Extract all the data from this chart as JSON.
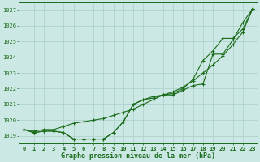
{
  "title": "Graphe pression niveau de la mer (hPa)",
  "xlabel_hours": [
    0,
    1,
    2,
    3,
    4,
    5,
    6,
    7,
    8,
    9,
    10,
    11,
    12,
    13,
    14,
    15,
    16,
    17,
    18,
    19,
    20,
    21,
    22,
    23
  ],
  "ylim": [
    1018.5,
    1027.5
  ],
  "yticks": [
    1019,
    1020,
    1021,
    1022,
    1023,
    1024,
    1025,
    1026,
    1027
  ],
  "bg_color": "#cce8e4",
  "line_color": "#1a6b1a",
  "grid_color": "#aacfc8",
  "series1": [
    1019.4,
    1019.2,
    1019.3,
    1019.3,
    1019.2,
    1018.8,
    1018.8,
    1018.8,
    1018.8,
    1019.2,
    1019.9,
    1021.0,
    1021.3,
    1021.4,
    1021.6,
    1021.6,
    1021.9,
    1022.2,
    1022.3,
    1024.2,
    1024.2,
    1025.1,
    1026.2,
    1027.1
  ],
  "series2": [
    1019.4,
    1019.2,
    1019.3,
    1019.3,
    1019.2,
    1018.8,
    1018.8,
    1018.8,
    1018.8,
    1019.2,
    1019.9,
    1021.0,
    1021.3,
    1021.5,
    1021.6,
    1021.7,
    1022.0,
    1022.6,
    1023.8,
    1024.4,
    1025.2,
    1025.2,
    1025.8,
    1027.1
  ],
  "series3": [
    1019.4,
    1019.3,
    1019.4,
    1019.4,
    1019.6,
    1019.8,
    1019.9,
    1020.0,
    1020.1,
    1020.3,
    1020.5,
    1020.7,
    1021.0,
    1021.3,
    1021.6,
    1021.8,
    1022.1,
    1022.5,
    1023.0,
    1023.5,
    1024.1,
    1024.8,
    1025.6,
    1027.1
  ],
  "title_fontsize": 6,
  "tick_fontsize": 5
}
